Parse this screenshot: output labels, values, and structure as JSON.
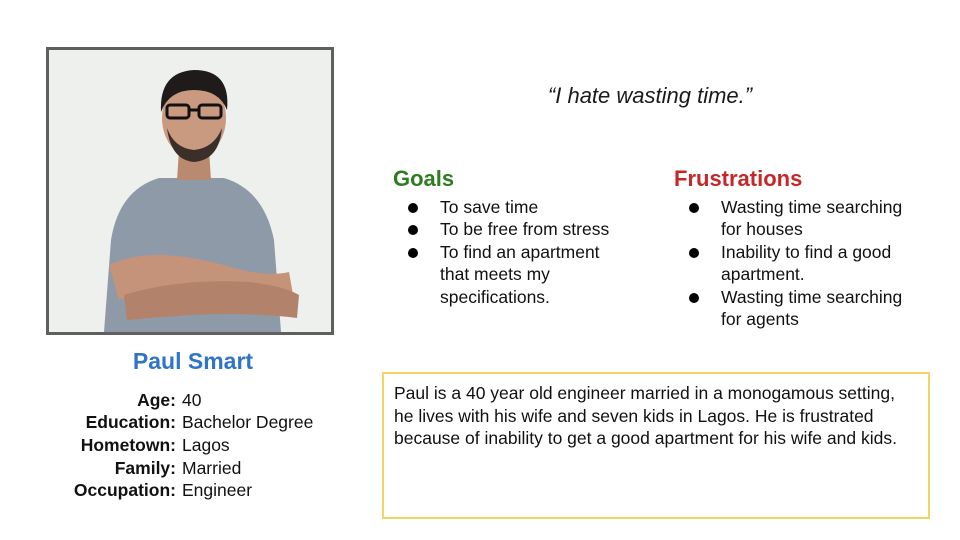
{
  "persona": {
    "name": "Paul Smart",
    "details": [
      {
        "label": "Age:",
        "value": "40"
      },
      {
        "label": "Education:",
        "value": "Bachelor Degree"
      },
      {
        "label": "Hometown:",
        "value": "Lagos"
      },
      {
        "label": "Family:",
        "value": "Married"
      },
      {
        "label": "Occupation:",
        "value": "Engineer"
      }
    ]
  },
  "quote": "“I hate wasting time.”",
  "goals": {
    "title": "Goals",
    "items": [
      "To save time",
      "To be free from stress",
      "To find an apartment that meets my specifications."
    ]
  },
  "frustrations": {
    "title": "Frustrations",
    "items": [
      "Wasting time searching for houses",
      "Inability to find a good apartment.",
      "Wasting time searching for agents"
    ]
  },
  "bio": "Paul is a 40 year old engineer married in a monogamous setting, he lives with his wife and seven kids in Lagos. He is frustrated because of inability to get a good apartment for his wife and kids.",
  "colors": {
    "name": "#2f74c6",
    "goals_title": "#2e7d1f",
    "frustrations_title": "#c62828",
    "bio_border": "#f3d565",
    "photo_border": "#5f5f5f"
  },
  "icons": {
    "bullet": "filled-circle"
  }
}
